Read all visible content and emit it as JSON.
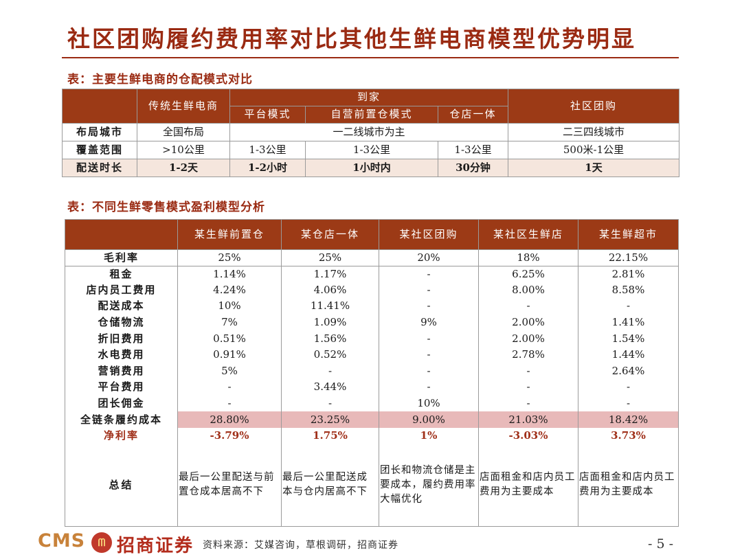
{
  "title": "社区团购履约费用率对比其他生鲜电商模型优势明显",
  "table1": {
    "caption": "表：主要生鲜电商的仓配模式对比",
    "h_traditional": "传统生鲜电商",
    "h_home": "到家",
    "h_platform": "平台模式",
    "h_selfrun": "自营前置仓模式",
    "h_warehouse_store": "仓店一体",
    "h_group": "社区团购",
    "rows": [
      {
        "label": "布局城市",
        "traditional": "全国布局",
        "home_merged": "一二线城市为主",
        "group": "二三四线城市"
      },
      {
        "label": "覆盖范围",
        "traditional": ">10公里",
        "platform": "1-3公里",
        "selfrun": "1-3公里",
        "warehouse_store": "1-3公里",
        "group": "500米-1公里"
      },
      {
        "label": "配送时长",
        "traditional": "1-2天",
        "platform": "1-2小时",
        "selfrun": "1小时内",
        "warehouse_store": "30分钟",
        "group": "1天"
      }
    ]
  },
  "table2": {
    "caption": "表：不同生鲜零售模式盈利模型分析",
    "headers": [
      "某生鲜前置仓",
      "某仓店一体",
      "某社区团购",
      "某社区生鲜店",
      "某生鲜超市"
    ],
    "rows": [
      {
        "label": "毛利率",
        "values": [
          "25%",
          "25%",
          "20%",
          "18%",
          "22.15%"
        ]
      },
      {
        "label": "租金",
        "values": [
          "1.14%",
          "1.17%",
          "-",
          "6.25%",
          "2.81%"
        ]
      },
      {
        "label": "店内员工费用",
        "values": [
          "4.24%",
          "4.06%",
          "-",
          "8.00%",
          "8.58%"
        ]
      },
      {
        "label": "配送成本",
        "values": [
          "10%",
          "11.41%",
          "-",
          "-",
          "-"
        ]
      },
      {
        "label": "仓储物流",
        "values": [
          "7%",
          "1.09%",
          "9%",
          "2.00%",
          "1.41%"
        ]
      },
      {
        "label": "折旧费用",
        "values": [
          "0.51%",
          "1.56%",
          "-",
          "2.00%",
          "1.54%"
        ]
      },
      {
        "label": "水电费用",
        "values": [
          "0.91%",
          "0.52%",
          "-",
          "2.78%",
          "1.44%"
        ]
      },
      {
        "label": "营销费用",
        "values": [
          "5%",
          "-",
          "-",
          "-",
          "2.64%"
        ]
      },
      {
        "label": "平台费用",
        "values": [
          "-",
          "3.44%",
          "-",
          "-",
          "-"
        ]
      },
      {
        "label": "团长佣金",
        "values": [
          "-",
          "-",
          "10%",
          "-",
          "-"
        ]
      },
      {
        "label": "全链条履约成本",
        "values": [
          "28.80%",
          "23.25%",
          "9.00%",
          "21.03%",
          "18.42%"
        ]
      },
      {
        "label": "净利率",
        "values": [
          "-3.79%",
          "1.75%",
          "1%",
          "-3.03%",
          "3.73%"
        ]
      }
    ],
    "summary_label": "总结",
    "summary": [
      "最后一公里配送与前置仓成本居高不下",
      "最后一公里配送成本与仓内居高不下",
      "团长和物流仓储是主要成本，履约费用率大幅优化",
      "店面租金和店内员工费用为主要成本",
      "店面租金和店内员工费用为主要成本"
    ]
  },
  "footer": {
    "logo_latin": "CMS",
    "logo_mark": "ᗰ",
    "logo_cn": "招商证券",
    "source": "资料来源：艾媒咨询，草根调研，招商证券",
    "page": "- 5 -"
  }
}
